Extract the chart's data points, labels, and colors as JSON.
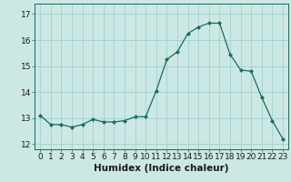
{
  "x": [
    0,
    1,
    2,
    3,
    4,
    5,
    6,
    7,
    8,
    9,
    10,
    11,
    12,
    13,
    14,
    15,
    16,
    17,
    18,
    19,
    20,
    21,
    22,
    23
  ],
  "y": [
    13.1,
    12.75,
    12.75,
    12.65,
    12.75,
    12.95,
    12.85,
    12.85,
    12.9,
    13.05,
    13.05,
    14.05,
    15.25,
    15.55,
    16.25,
    16.5,
    16.65,
    16.65,
    15.45,
    14.85,
    14.8,
    13.8,
    12.9,
    12.2
  ],
  "xlabel": "Humidex (Indice chaleur)",
  "line_color": "#1a6b5c",
  "marker_color": "#1a6b5c",
  "bg_color": "#cce8e4",
  "grid_color": "#99cccc",
  "xlim": [
    -0.5,
    23.5
  ],
  "ylim": [
    11.8,
    17.4
  ],
  "yticks": [
    12,
    13,
    14,
    15,
    16,
    17
  ],
  "xticks": [
    0,
    1,
    2,
    3,
    4,
    5,
    6,
    7,
    8,
    9,
    10,
    11,
    12,
    13,
    14,
    15,
    16,
    17,
    18,
    19,
    20,
    21,
    22,
    23
  ],
  "xlabel_fontsize": 7.5,
  "tick_fontsize": 6.5
}
